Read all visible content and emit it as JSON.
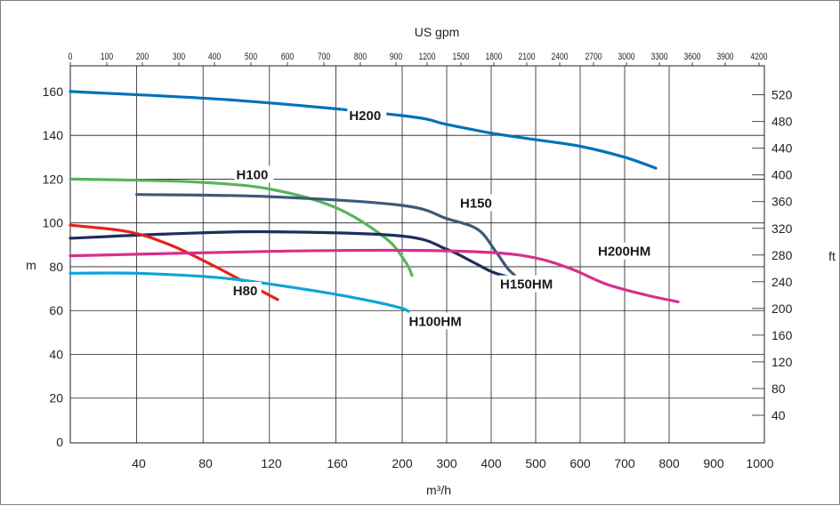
{
  "chart_data": {
    "type": "line",
    "title": "",
    "top_axis": {
      "label": "US gpm",
      "ticks": [
        "0",
        "100",
        "200",
        "300",
        "400",
        "500",
        "600",
        "700",
        "800",
        "900",
        "1200",
        "1500",
        "1800",
        "2100",
        "2400",
        "2700",
        "3000",
        "3300",
        "3600",
        "3900",
        "4200"
      ]
    },
    "bottom_axis": {
      "label": "m³/h",
      "ticks": [
        "40",
        "80",
        "120",
        "160",
        "200",
        "300",
        "400",
        "500",
        "600",
        "700",
        "800",
        "900",
        "1000"
      ],
      "note": "piecewise scale: 0-200 linear, 200-1000 compressed"
    },
    "left_axis": {
      "label": "m",
      "ticks": [
        "160",
        "140",
        "120",
        "100",
        "80",
        "60",
        "40",
        "20",
        "0"
      ],
      "ylim": [
        0,
        160
      ]
    },
    "right_axis": {
      "label": "ft",
      "ticks": [
        "520",
        "480",
        "440",
        "400",
        "360",
        "320",
        "280",
        "240",
        "200",
        "160",
        "120",
        "80",
        "40"
      ]
    },
    "grid": true,
    "legend": "inline labels",
    "series": [
      {
        "name": "H200",
        "color": "#0072b8",
        "label_at": [
          168,
          147
        ],
        "points": [
          [
            0,
            160
          ],
          [
            100,
            156
          ],
          [
            200,
            149
          ],
          [
            300,
            145
          ],
          [
            400,
            141
          ],
          [
            500,
            138
          ],
          [
            600,
            135
          ],
          [
            700,
            130
          ],
          [
            770,
            125
          ]
        ]
      },
      {
        "name": "H100",
        "color": "#59b45a",
        "label_at": [
          100,
          120
        ],
        "points": [
          [
            0,
            120
          ],
          [
            40,
            119.5
          ],
          [
            80,
            118.5
          ],
          [
            120,
            115.5
          ],
          [
            160,
            107
          ],
          [
            190,
            93
          ],
          [
            208,
            82
          ],
          [
            222,
            76
          ]
        ]
      },
      {
        "name": "H150",
        "color": "#3c5a78",
        "label_at": [
          330,
          107
        ],
        "points": [
          [
            40,
            113
          ],
          [
            120,
            112
          ],
          [
            200,
            108
          ],
          [
            300,
            102
          ],
          [
            370,
            97
          ],
          [
            410,
            87
          ],
          [
            438,
            79
          ],
          [
            465,
            74
          ]
        ]
      },
      {
        "name": "H150HM",
        "color": "#1e2e5a",
        "label_at": [
          420,
          70
        ],
        "points": [
          [
            0,
            93
          ],
          [
            60,
            95
          ],
          [
            120,
            96
          ],
          [
            200,
            94
          ],
          [
            300,
            88
          ],
          [
            360,
            82
          ],
          [
            410,
            77
          ],
          [
            470,
            74
          ]
        ]
      },
      {
        "name": "H80",
        "color": "#e2241c",
        "label_at": [
          98,
          67
        ],
        "points": [
          [
            0,
            99
          ],
          [
            35,
            96
          ],
          [
            60,
            90
          ],
          [
            85,
            81
          ],
          [
            105,
            73
          ],
          [
            125,
            65
          ]
        ]
      },
      {
        "name": "H200HM",
        "color": "#d6308c",
        "label_at": [
          640,
          85
        ],
        "points": [
          [
            0,
            85
          ],
          [
            120,
            87
          ],
          [
            200,
            87.5
          ],
          [
            400,
            86.5
          ],
          [
            500,
            84
          ],
          [
            580,
            79
          ],
          [
            660,
            72
          ],
          [
            750,
            67
          ],
          [
            820,
            64
          ]
        ]
      },
      {
        "name": "H100HM",
        "color": "#0fa3d8",
        "label_at": [
          215,
          53
        ],
        "points": [
          [
            0,
            77
          ],
          [
            40,
            77
          ],
          [
            90,
            75
          ],
          [
            130,
            71
          ],
          [
            170,
            66
          ],
          [
            200,
            61
          ],
          [
            215,
            58
          ]
        ]
      }
    ]
  }
}
